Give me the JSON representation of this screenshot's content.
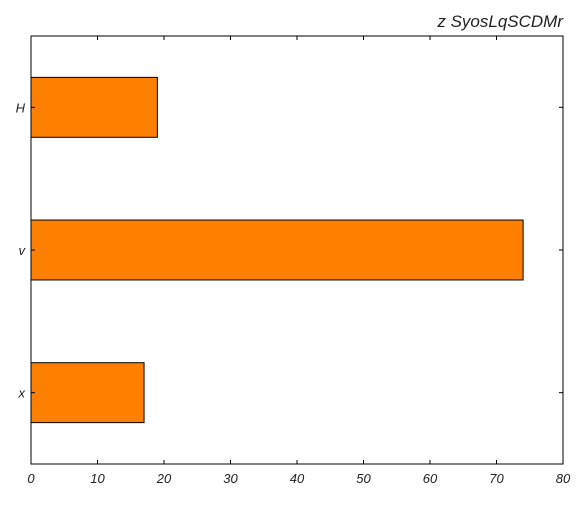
{
  "chart_data": {
    "type": "bar",
    "orientation": "horizontal",
    "title": "z SyosLqSCDMr",
    "xlabel": "",
    "ylabel": "",
    "categories": [
      "H",
      "v",
      "x"
    ],
    "values": [
      19,
      74,
      17
    ],
    "xlim": [
      0,
      80
    ],
    "xticks": [
      0,
      10,
      20,
      30,
      40,
      50,
      60,
      70,
      80
    ],
    "grid": false,
    "bar_color": "#ff8000",
    "bar_edge_color": "#000000"
  }
}
